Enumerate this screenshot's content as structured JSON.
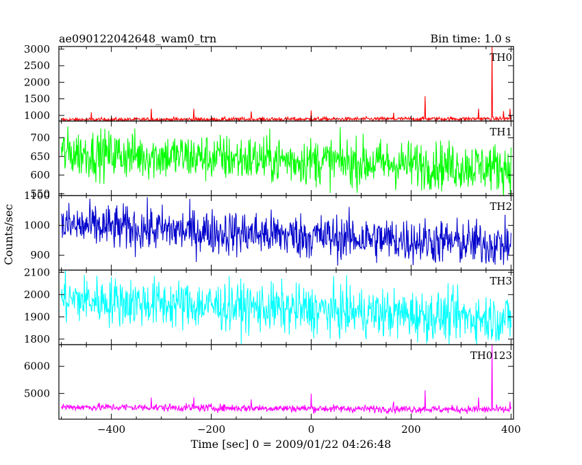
{
  "title_left": "ae090122042648_wam0_trn",
  "title_right": "Bin time: 1.0 s",
  "ylabel": "Counts/sec",
  "xlabel": "Time [sec] 0 = 2009/01/22 04:26:48",
  "chart_data": {
    "type": "line",
    "xlim": [
      -505,
      405
    ],
    "x_ticks": [
      -400,
      -200,
      0,
      200,
      400
    ],
    "x_tick_labels": [
      "−400",
      "−200",
      "0",
      "200",
      "400"
    ],
    "panels": [
      {
        "name": "TH0",
        "color": "#ff0000",
        "ylim": [
          830,
          3080
        ],
        "y_ticks": [
          1000,
          1500,
          2000,
          2500,
          3000
        ],
        "y_tick_labels": [
          "1000",
          "1500",
          "2000",
          "2500",
          "3000"
        ],
        "series_model": {
          "base_start": 870,
          "base_end": 900,
          "noise": 30
        },
        "spikes": [
          [
            -440,
            1090
          ],
          [
            -320,
            1200
          ],
          [
            -235,
            1200
          ],
          [
            -120,
            1120
          ],
          [
            0,
            1150
          ],
          [
            165,
            1080
          ],
          [
            228,
            1580
          ],
          [
            335,
            1200
          ],
          [
            362,
            3080
          ],
          [
            385,
            1130
          ],
          [
            398,
            1200
          ]
        ]
      },
      {
        "name": "TH1",
        "color": "#00ff00",
        "ylim": [
          545,
          745
        ],
        "y_ticks": [
          550,
          600,
          650,
          700
        ],
        "y_tick_labels": [
          "550",
          "600",
          "650",
          "700"
        ],
        "series_model": {
          "base_start": 660,
          "base_end": 620,
          "noise": 32
        },
        "spikes": []
      },
      {
        "name": "TH2",
        "color": "#0000cc",
        "ylim": [
          850,
          1100
        ],
        "y_ticks": [
          900,
          1000,
          1100
        ],
        "y_tick_labels": [
          "900",
          "1000",
          "1100"
        ],
        "series_model": {
          "base_start": 1000,
          "base_end": 935,
          "noise": 38
        },
        "spikes": []
      },
      {
        "name": "TH3",
        "color": "#00ffff",
        "ylim": [
          1775,
          2110
        ],
        "y_ticks": [
          1800,
          1900,
          2000,
          2100
        ],
        "y_tick_labels": [
          "1800",
          "1900",
          "2000",
          "2100"
        ],
        "series_model": {
          "base_start": 1980,
          "base_end": 1890,
          "noise": 55
        },
        "spikes": []
      },
      {
        "name": "TH0123",
        "color": "#ff00ff",
        "ylim": [
          4050,
          6800
        ],
        "y_ticks": [
          5000,
          6000
        ],
        "y_tick_labels": [
          "5000",
          "6000"
        ],
        "series_model": {
          "base_start": 4500,
          "base_end": 4400,
          "noise": 70
        },
        "spikes": [
          [
            -320,
            4850
          ],
          [
            -235,
            4850
          ],
          [
            -120,
            4780
          ],
          [
            0,
            4990
          ],
          [
            165,
            4700
          ],
          [
            228,
            5120
          ],
          [
            335,
            4850
          ],
          [
            362,
            6800
          ],
          [
            398,
            4700
          ]
        ]
      }
    ]
  }
}
